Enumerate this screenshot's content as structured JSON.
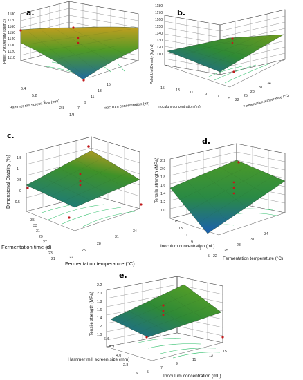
{
  "chart_data": [
    {
      "panel": "a.",
      "type": "surface",
      "zlabel": "Pellet Unit Density (kg/m3)",
      "z_ticks": [
        "1110",
        "1120",
        "1130",
        "1140",
        "1150",
        "1160",
        "1170",
        "1180"
      ],
      "xlabel": "Inoculum concentration (ml)",
      "x_ticks": [
        "5",
        "7",
        "9",
        "11",
        "13",
        "15"
      ],
      "ylabel": "Hammer mill screen size (mm)",
      "y_ticks": [
        "1.6",
        "2.8",
        "4",
        "5.2",
        "6.4"
      ],
      "corners": {
        "x_low_y_low": 1128,
        "x_high_y_low": 1168,
        "x_low_y_high": 1175,
        "x_high_y_high": 1170
      },
      "points": [
        1176,
        1167,
        1163,
        1157,
        1122
      ]
    },
    {
      "panel": "b.",
      "type": "surface",
      "zlabel": "Pellet Unit Density (kg/m3)",
      "z_ticks": [
        "1110",
        "1120",
        "1130",
        "1140",
        "1150",
        "1160",
        "1170",
        "1180"
      ],
      "xlabel": "Fermentation temperature (°C)",
      "x_ticks": [
        "22",
        "25",
        "28",
        "31",
        "34"
      ],
      "ylabel": "Inoculum concentration (ml)",
      "y_ticks": [
        "5",
        "7",
        "9",
        "11",
        "13",
        "15"
      ],
      "corners": {
        "x_low_y_low": 1115,
        "x_high_y_low": 1170,
        "x_low_y_high": 1148,
        "x_high_y_high": 1160
      },
      "points": [
        1163,
        1158,
        1112
      ]
    },
    {
      "panel": "c.",
      "type": "surface",
      "zlabel": "Dimensional Stability (%)",
      "z_ticks": [
        "-0.5",
        "0",
        "0.5",
        "1",
        "1.5"
      ],
      "xlabel": "Fermentation temperature (°C)",
      "x_ticks": [
        "22",
        "25",
        "28",
        "31",
        "34"
      ],
      "ylabel": "Fermentation time (d)",
      "y_ticks": [
        "21",
        "23",
        "25",
        "27",
        "29",
        "31",
        "33",
        "35"
      ],
      "corners": {
        "x_low_y_low": -0.1,
        "x_high_y_low": 0.1,
        "x_low_y_high": 0.1,
        "x_high_y_high": 1.5
      },
      "points": [
        1.7,
        0.6,
        0.3,
        0.2,
        0.0,
        -0.6
      ]
    },
    {
      "panel": "d.",
      "type": "surface",
      "zlabel": "Tensile strength (MPa)",
      "z_ticks": [
        "1.0",
        "1.2",
        "1.4",
        "1.6",
        "1.8",
        "2.0",
        "2.2"
      ],
      "xlabel": "Fermentation temperature (°C)",
      "x_ticks": [
        "22",
        "25",
        "28",
        "31",
        "34"
      ],
      "ylabel": "Inoculum concentration (mL)",
      "y_ticks": [
        "5",
        "7",
        "9",
        "11",
        "13",
        "15"
      ],
      "corners": {
        "x_low_y_low": 1.6,
        "x_high_y_low": 1.5,
        "x_low_y_high": 1.1,
        "x_high_y_high": 1.7
      },
      "points": [
        1.8,
        1.5,
        1.3,
        1.25
      ]
    },
    {
      "panel": "e.",
      "type": "surface",
      "zlabel": "Tensile strength (MPa)",
      "z_ticks": [
        "1.0",
        "1.2",
        "1.4",
        "1.6",
        "1.8",
        "2.0",
        "2.2"
      ],
      "xlabel": "Inoculum concentration (mL)",
      "x_ticks": [
        "5",
        "7",
        "9",
        "11",
        "13",
        "15"
      ],
      "ylabel": "Hammer mill screen size (mm)",
      "y_ticks": [
        "1.6",
        "2.8",
        "4.0",
        "5.2",
        "6.4"
      ],
      "corners": {
        "x_low_y_low": 1.3,
        "x_high_y_low": 1.9,
        "x_low_y_high": 1.2,
        "x_high_y_high": 1.1
      },
      "points": [
        1.6,
        1.5,
        1.35,
        1.25
      ]
    }
  ],
  "colors": {
    "high": "#c8a21e",
    "mid": "#3e8f2a",
    "low": "#1a6fa8",
    "point": "#c0191b",
    "contour": "#2fbf6a"
  }
}
